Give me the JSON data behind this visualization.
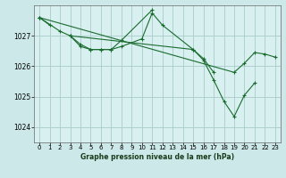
{
  "bg_color": "#cce8e8",
  "plot_bg_color": "#d8f0f0",
  "grid_color": "#aacccc",
  "line_color": "#1a6b2e",
  "marker_color": "#1a6b2e",
  "title": "Graphe pression niveau de la mer (hPa)",
  "ylim": [
    1023.5,
    1028.0
  ],
  "yticks": [
    1024,
    1025,
    1026,
    1027
  ],
  "xlim": [
    -0.5,
    23.5
  ],
  "xticks": [
    0,
    1,
    2,
    3,
    4,
    5,
    6,
    7,
    8,
    9,
    10,
    11,
    12,
    13,
    14,
    15,
    16,
    17,
    18,
    19,
    20,
    21,
    22,
    23
  ],
  "series": [
    {
      "x": [
        0,
        1
      ],
      "y": [
        1027.6,
        1027.35
      ]
    },
    {
      "x": [
        0,
        2,
        3,
        4,
        5,
        6,
        7,
        8,
        11
      ],
      "y": [
        1027.6,
        1027.15,
        1027.0,
        1026.65,
        1026.55,
        1026.55,
        1026.55,
        1026.85,
        1027.85
      ]
    },
    {
      "x": [
        3,
        4,
        5,
        6,
        7,
        8,
        10,
        11,
        12,
        15,
        16,
        17
      ],
      "y": [
        1027.0,
        1026.72,
        1026.55,
        1026.55,
        1026.55,
        1026.65,
        1026.9,
        1027.75,
        1027.35,
        1026.55,
        1026.25,
        1025.8
      ]
    },
    {
      "x": [
        3,
        15,
        16,
        17,
        18,
        19,
        20,
        21
      ],
      "y": [
        1027.0,
        1026.55,
        1026.2,
        1025.55,
        1024.85,
        1024.35,
        1025.05,
        1025.45
      ]
    },
    {
      "x": [
        0,
        19,
        20,
        21,
        22,
        23
      ],
      "y": [
        1027.6,
        1025.8,
        1026.1,
        1026.45,
        1026.4,
        1026.3
      ]
    }
  ]
}
